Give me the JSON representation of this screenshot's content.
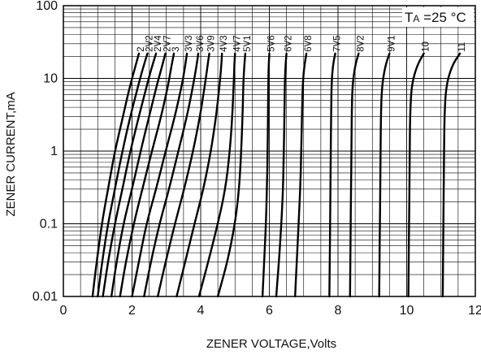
{
  "chart_data": {
    "type": "line",
    "title": "",
    "xlabel": "ZENER VOLTAGE,Volts",
    "ylabel": "ZENER CURRENT,mA",
    "xlim": [
      0,
      12
    ],
    "ylim": [
      0.01,
      100
    ],
    "yscale": "log",
    "grid": true,
    "x_ticks": [
      "0",
      "2",
      "4",
      "6",
      "8",
      "10",
      "12"
    ],
    "y_ticks": [
      "0.01",
      "0.1",
      "1",
      "10",
      "100"
    ],
    "annotation": {
      "prefix": "T",
      "sub": "A",
      "rest": " =25 °C"
    },
    "series": [
      {
        "name": "2",
        "points": [
          [
            0.85,
            0.01
          ],
          [
            0.97,
            0.03
          ],
          [
            1.12,
            0.1
          ],
          [
            1.3,
            0.3
          ],
          [
            1.5,
            1
          ],
          [
            1.7,
            2.5
          ],
          [
            1.88,
            6
          ],
          [
            2.0,
            10
          ],
          [
            2.15,
            18
          ],
          [
            2.2,
            22
          ]
        ]
      },
      {
        "name": "2V2",
        "points": [
          [
            1.0,
            0.01
          ],
          [
            1.13,
            0.03
          ],
          [
            1.3,
            0.1
          ],
          [
            1.5,
            0.3
          ],
          [
            1.72,
            1
          ],
          [
            1.95,
            3
          ],
          [
            2.15,
            7
          ],
          [
            2.3,
            13
          ],
          [
            2.45,
            22
          ]
        ]
      },
      {
        "name": "2V4",
        "points": [
          [
            1.15,
            0.01
          ],
          [
            1.3,
            0.03
          ],
          [
            1.5,
            0.1
          ],
          [
            1.72,
            0.3
          ],
          [
            1.95,
            1
          ],
          [
            2.2,
            3
          ],
          [
            2.4,
            7
          ],
          [
            2.55,
            13
          ],
          [
            2.7,
            22
          ]
        ]
      },
      {
        "name": "2V7",
        "points": [
          [
            1.4,
            0.01
          ],
          [
            1.55,
            0.03
          ],
          [
            1.75,
            0.1
          ],
          [
            2.0,
            0.3
          ],
          [
            2.25,
            1
          ],
          [
            2.5,
            3
          ],
          [
            2.72,
            8
          ],
          [
            2.88,
            15
          ],
          [
            2.97,
            22
          ]
        ]
      },
      {
        "name": "3",
        "points": [
          [
            1.65,
            0.01
          ],
          [
            1.82,
            0.03
          ],
          [
            2.05,
            0.1
          ],
          [
            2.3,
            0.3
          ],
          [
            2.58,
            1
          ],
          [
            2.85,
            3
          ],
          [
            3.05,
            8
          ],
          [
            3.15,
            15
          ],
          [
            3.22,
            22
          ]
        ]
      },
      {
        "name": "3V3",
        "points": [
          [
            2.0,
            0.01
          ],
          [
            2.2,
            0.03
          ],
          [
            2.42,
            0.1
          ],
          [
            2.7,
            0.3
          ],
          [
            2.98,
            1
          ],
          [
            3.25,
            3
          ],
          [
            3.45,
            8
          ],
          [
            3.55,
            15
          ],
          [
            3.6,
            22
          ]
        ]
      },
      {
        "name": "3V6",
        "points": [
          [
            2.35,
            0.01
          ],
          [
            2.55,
            0.03
          ],
          [
            2.8,
            0.1
          ],
          [
            3.08,
            0.3
          ],
          [
            3.35,
            1
          ],
          [
            3.6,
            3
          ],
          [
            3.78,
            8
          ],
          [
            3.88,
            15
          ],
          [
            3.93,
            22
          ]
        ]
      },
      {
        "name": "3V9",
        "points": [
          [
            2.75,
            0.01
          ],
          [
            2.98,
            0.03
          ],
          [
            3.25,
            0.1
          ],
          [
            3.52,
            0.3
          ],
          [
            3.78,
            1
          ],
          [
            3.98,
            3
          ],
          [
            4.12,
            8
          ],
          [
            4.2,
            15
          ],
          [
            4.25,
            22
          ]
        ]
      },
      {
        "name": "4V3",
        "points": [
          [
            3.3,
            0.01
          ],
          [
            3.55,
            0.03
          ],
          [
            3.82,
            0.1
          ],
          [
            4.08,
            0.3
          ],
          [
            4.3,
            1
          ],
          [
            4.45,
            3
          ],
          [
            4.55,
            8
          ],
          [
            4.6,
            15
          ],
          [
            4.62,
            22
          ]
        ]
      },
      {
        "name": "4V7",
        "points": [
          [
            3.95,
            0.01
          ],
          [
            4.22,
            0.03
          ],
          [
            4.5,
            0.1
          ],
          [
            4.72,
            0.3
          ],
          [
            4.85,
            1
          ],
          [
            4.92,
            3
          ],
          [
            4.96,
            8
          ],
          [
            4.98,
            15
          ],
          [
            5.0,
            22
          ]
        ]
      },
      {
        "name": "5V1",
        "points": [
          [
            4.5,
            0.01
          ],
          [
            4.78,
            0.03
          ],
          [
            5.0,
            0.1
          ],
          [
            5.12,
            0.3
          ],
          [
            5.18,
            1
          ],
          [
            5.22,
            3
          ],
          [
            5.24,
            8
          ],
          [
            5.27,
            15
          ],
          [
            5.3,
            22
          ]
        ]
      },
      {
        "name": "5V6",
        "points": [
          [
            5.8,
            0.01
          ],
          [
            5.85,
            0.03
          ],
          [
            5.9,
            0.1
          ],
          [
            5.93,
            0.3
          ],
          [
            5.95,
            1
          ],
          [
            5.96,
            3
          ],
          [
            5.97,
            8
          ],
          [
            5.98,
            15
          ],
          [
            6.0,
            22
          ]
        ]
      },
      {
        "name": "6V2",
        "points": [
          [
            6.2,
            0.01
          ],
          [
            6.28,
            0.03
          ],
          [
            6.35,
            0.1
          ],
          [
            6.4,
            0.3
          ],
          [
            6.42,
            1
          ],
          [
            6.44,
            3
          ],
          [
            6.45,
            8
          ],
          [
            6.47,
            15
          ],
          [
            6.5,
            22
          ]
        ]
      },
      {
        "name": "6V8",
        "points": [
          [
            6.75,
            0.01
          ],
          [
            6.8,
            0.03
          ],
          [
            6.85,
            0.1
          ],
          [
            6.9,
            0.3
          ],
          [
            6.93,
            1
          ],
          [
            6.95,
            3
          ],
          [
            6.97,
            8
          ],
          [
            7.02,
            15
          ],
          [
            7.08,
            22
          ]
        ]
      },
      {
        "name": "7V5",
        "points": [
          [
            7.75,
            0.01
          ],
          [
            7.76,
            0.03
          ],
          [
            7.77,
            0.1
          ],
          [
            7.78,
            0.3
          ],
          [
            7.79,
            1
          ],
          [
            7.8,
            3
          ],
          [
            7.81,
            8
          ],
          [
            7.85,
            15
          ],
          [
            7.92,
            22
          ]
        ]
      },
      {
        "name": "8V2",
        "points": [
          [
            8.35,
            0.01
          ],
          [
            8.36,
            0.03
          ],
          [
            8.37,
            0.1
          ],
          [
            8.38,
            0.3
          ],
          [
            8.39,
            1
          ],
          [
            8.4,
            3
          ],
          [
            8.42,
            8
          ],
          [
            8.5,
            15
          ],
          [
            8.6,
            22
          ]
        ]
      },
      {
        "name": "9V1",
        "points": [
          [
            9.2,
            0.01
          ],
          [
            9.21,
            0.03
          ],
          [
            9.22,
            0.1
          ],
          [
            9.23,
            0.3
          ],
          [
            9.24,
            1
          ],
          [
            9.25,
            3
          ],
          [
            9.28,
            8
          ],
          [
            9.38,
            15
          ],
          [
            9.5,
            22
          ]
        ]
      },
      {
        "name": "10",
        "points": [
          [
            10.05,
            0.01
          ],
          [
            10.06,
            0.03
          ],
          [
            10.07,
            0.1
          ],
          [
            10.08,
            0.3
          ],
          [
            10.09,
            1
          ],
          [
            10.1,
            3
          ],
          [
            10.14,
            8
          ],
          [
            10.3,
            15
          ],
          [
            10.5,
            22
          ]
        ]
      },
      {
        "name": "11",
        "points": [
          [
            11.05,
            0.01
          ],
          [
            11.06,
            0.03
          ],
          [
            11.07,
            0.1
          ],
          [
            11.08,
            0.3
          ],
          [
            11.09,
            1
          ],
          [
            11.1,
            3
          ],
          [
            11.15,
            8
          ],
          [
            11.32,
            15
          ],
          [
            11.55,
            22
          ]
        ]
      }
    ]
  }
}
